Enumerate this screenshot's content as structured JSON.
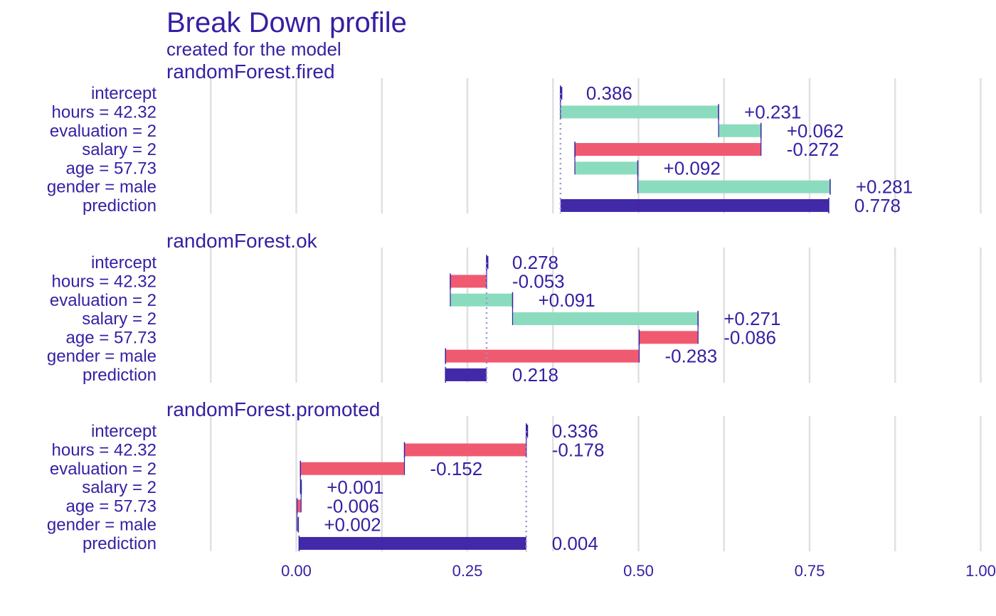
{
  "chart_data": {
    "type": "bar",
    "title": "Break Down profile",
    "subtitle": "created for the  model",
    "xlim": [
      -0.25,
      1.0
    ],
    "x_ticks": [
      0.0,
      0.25,
      0.5,
      0.75,
      1.0
    ],
    "x_tick_labels": [
      "0.00",
      "0.25",
      "0.50",
      "0.75",
      "1.00"
    ],
    "grid": true,
    "colors": {
      "positive": "#8bdcbe",
      "negative": "#f05a71",
      "prediction": "#371ea3",
      "text": "#371ea3",
      "grid": "#e0e0e0",
      "intercept_line": "#9b8fd1"
    },
    "panels": [
      {
        "name": "randomForest.fired",
        "intercept": 0.386,
        "rows": [
          {
            "label": "intercept",
            "value": 0.386,
            "text": "0.386",
            "kind": "intercept"
          },
          {
            "label": "hours = 42.32",
            "value": 0.231,
            "text": "+0.231",
            "kind": "positive"
          },
          {
            "label": "evaluation = 2",
            "value": 0.062,
            "text": "+0.062",
            "kind": "positive"
          },
          {
            "label": "salary = 2",
            "value": -0.272,
            "text": "-0.272",
            "kind": "negative"
          },
          {
            "label": "age = 57.73",
            "value": 0.092,
            "text": "+0.092",
            "kind": "positive"
          },
          {
            "label": "gender = male",
            "value": 0.281,
            "text": "+0.281",
            "kind": "positive"
          },
          {
            "label": "prediction",
            "value": 0.778,
            "text": "0.778",
            "kind": "prediction"
          }
        ]
      },
      {
        "name": "randomForest.ok",
        "intercept": 0.278,
        "rows": [
          {
            "label": "intercept",
            "value": 0.278,
            "text": "0.278",
            "kind": "intercept"
          },
          {
            "label": "hours = 42.32",
            "value": -0.053,
            "text": "-0.053",
            "kind": "negative"
          },
          {
            "label": "evaluation = 2",
            "value": 0.091,
            "text": "+0.091",
            "kind": "positive"
          },
          {
            "label": "salary = 2",
            "value": 0.271,
            "text": "+0.271",
            "kind": "positive"
          },
          {
            "label": "age = 57.73",
            "value": -0.086,
            "text": "-0.086",
            "kind": "negative"
          },
          {
            "label": "gender = male",
            "value": -0.283,
            "text": "-0.283",
            "kind": "negative"
          },
          {
            "label": "prediction",
            "value": 0.218,
            "text": "0.218",
            "kind": "prediction"
          }
        ]
      },
      {
        "name": "randomForest.promoted",
        "intercept": 0.336,
        "rows": [
          {
            "label": "intercept",
            "value": 0.336,
            "text": "0.336",
            "kind": "intercept"
          },
          {
            "label": "hours = 42.32",
            "value": -0.178,
            "text": "-0.178",
            "kind": "negative"
          },
          {
            "label": "evaluation = 2",
            "value": -0.152,
            "text": "-0.152",
            "kind": "negative"
          },
          {
            "label": "salary = 2",
            "value": 0.001,
            "text": "+0.001",
            "kind": "positive"
          },
          {
            "label": "age = 57.73",
            "value": -0.006,
            "text": "-0.006",
            "kind": "negative"
          },
          {
            "label": "gender = male",
            "value": 0.002,
            "text": "+0.002",
            "kind": "positive"
          },
          {
            "label": "prediction",
            "value": 0.004,
            "text": "0.004",
            "kind": "prediction"
          }
        ]
      }
    ]
  }
}
